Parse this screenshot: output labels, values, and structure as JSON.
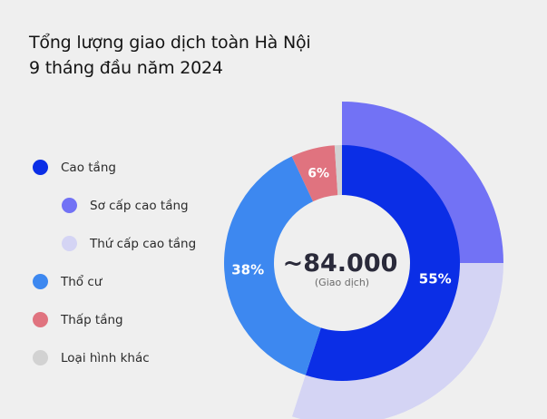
{
  "title_line1": "Tổng lượng giao dịch toàn Hà Nội",
  "title_line2": "9 tháng đầu năm 2024",
  "center_value": "~84.000",
  "center_label": "(Giao dịch)",
  "legend": [
    {
      "label": "Cao tầng",
      "color": "#0b2ee6",
      "indent": false
    },
    {
      "label": "Sơ cấp cao tầng",
      "color": "#7272f5",
      "indent": true
    },
    {
      "label": "Thứ cấp cao tầng",
      "color": "#d4d4f4",
      "indent": true
    },
    {
      "label": "Thổ cư",
      "color": "#3d88f0",
      "indent": false
    },
    {
      "label": "Thấp tầng",
      "color": "#e0737f",
      "indent": false
    },
    {
      "label": "Loại hình khác",
      "color": "#d2d2d2",
      "indent": false
    }
  ],
  "chart_data": {
    "type": "pie",
    "title": "Tổng lượng giao dịch toàn Hà Nội 9 tháng đầu năm 2024",
    "inner_ring": {
      "categories": [
        "Cao tầng",
        "Thổ cư",
        "Thấp tầng",
        "Loại hình khác"
      ],
      "values": [
        55,
        38,
        6,
        1
      ],
      "labels": [
        "55%",
        "38%",
        "6%",
        ""
      ],
      "colors": [
        "#0b2ee6",
        "#3d88f0",
        "#e0737f",
        "#d2d2d2"
      ]
    },
    "outer_ring": {
      "categories": [
        "Sơ cấp cao tầng",
        "Thứ cấp cao tầng"
      ],
      "values": [
        25,
        30
      ],
      "colors": [
        "#7272f5",
        "#d4d4f4"
      ]
    },
    "total": "~84.000",
    "unit": "(Giao dịch)"
  }
}
